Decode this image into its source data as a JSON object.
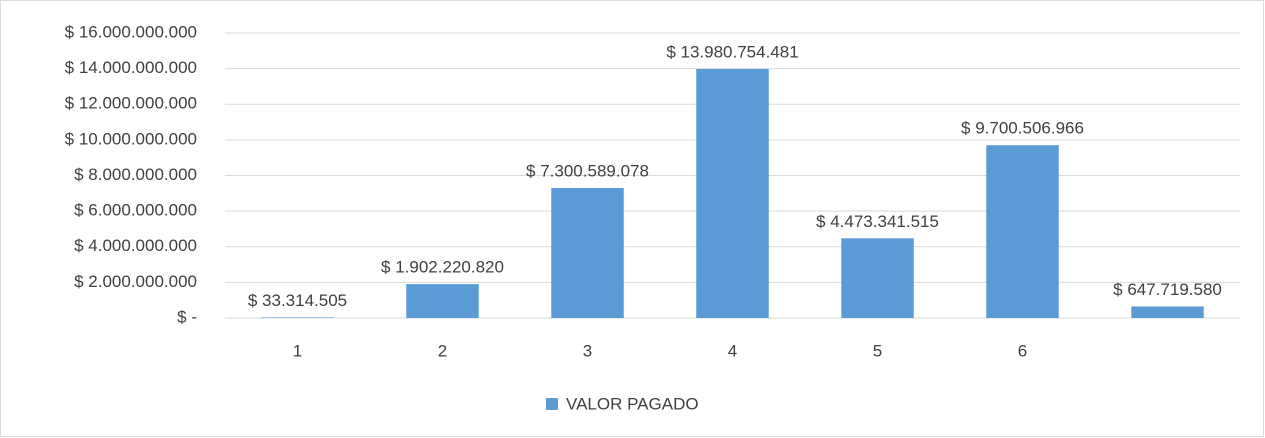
{
  "chart_data": {
    "type": "bar",
    "categories": [
      "1",
      "2",
      "3",
      "4",
      "5",
      "6",
      null
    ],
    "series": [
      {
        "name": "VALOR PAGADO",
        "color": "#5b9bd5",
        "values": [
          33314505,
          1902220820,
          7300589078,
          13980754481,
          4473341515,
          9700506966,
          647719580
        ],
        "value_labels": [
          "$ 33.314.505",
          "$ 1.902.220.820",
          "$ 7.300.589.078",
          "$ 13.980.754.481",
          "$ 4.473.341.515",
          "$ 9.700.506.966",
          "$ 647.719.580"
        ]
      }
    ],
    "ylim": [
      0,
      16000000000
    ],
    "yticks": [
      {
        "value": 0,
        "label": "$ -"
      },
      {
        "value": 2000000000,
        "label": "$ 2.000.000.000"
      },
      {
        "value": 4000000000,
        "label": "$ 4.000.000.000"
      },
      {
        "value": 6000000000,
        "label": "$ 6.000.000.000"
      },
      {
        "value": 8000000000,
        "label": "$ 8.000.000.000"
      },
      {
        "value": 10000000000,
        "label": "$ 10.000.000.000"
      },
      {
        "value": 12000000000,
        "label": "$ 12.000.000.000"
      },
      {
        "value": 14000000000,
        "label": "$ 14.000.000.000"
      },
      {
        "value": 16000000000,
        "label": "$ 16.000.000.000"
      }
    ],
    "grid": true,
    "legend": "bottom"
  }
}
